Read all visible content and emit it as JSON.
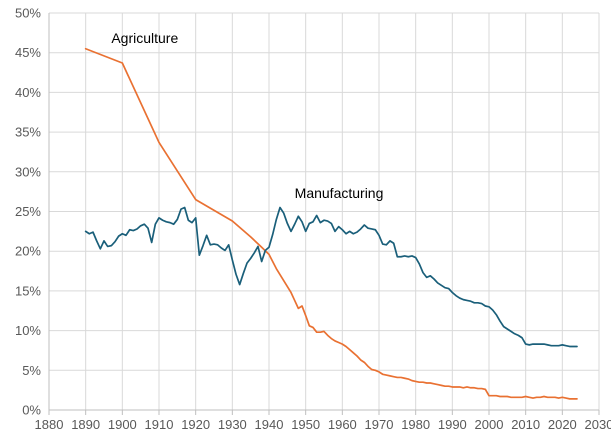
{
  "chart_data": {
    "type": "line",
    "title": "",
    "xlabel": "",
    "ylabel": "",
    "xlim": [
      1880,
      2030
    ],
    "ylim": [
      0,
      0.5
    ],
    "x_ticks": [
      1880,
      1890,
      1900,
      1910,
      1920,
      1930,
      1940,
      1950,
      1960,
      1970,
      1980,
      1990,
      2000,
      2010,
      2020,
      2030
    ],
    "x_tick_labels": [
      "1880",
      "1890",
      "1900",
      "1910",
      "1920",
      "1930",
      "1940",
      "1950",
      "1960",
      "1970",
      "1980",
      "1990",
      "2000",
      "2010",
      "2020",
      "2030"
    ],
    "y_ticks": [
      0,
      0.05,
      0.1,
      0.15,
      0.2,
      0.25,
      0.3,
      0.35,
      0.4,
      0.45,
      0.5
    ],
    "y_tick_labels": [
      "0%",
      "5%",
      "10%",
      "15%",
      "20%",
      "25%",
      "30%",
      "35%",
      "40%",
      "45%",
      "50%"
    ],
    "grid": {
      "vertical": true,
      "horizontal": true
    },
    "legend": "none",
    "series": [
      {
        "name": "Agriculture",
        "color": "#e97132",
        "label_at": [
          1897,
          0.462
        ],
        "x": [
          1890,
          1900,
          1910,
          1920,
          1930,
          1935,
          1938,
          1940,
          1942,
          1944,
          1946,
          1947,
          1948,
          1949,
          1950,
          1951,
          1952,
          1953,
          1954,
          1955,
          1956,
          1957,
          1958,
          1959,
          1960,
          1961,
          1962,
          1963,
          1964,
          1965,
          1966,
          1967,
          1968,
          1969,
          1970,
          1971,
          1972,
          1973,
          1974,
          1975,
          1976,
          1977,
          1978,
          1979,
          1980,
          1981,
          1982,
          1983,
          1984,
          1985,
          1986,
          1987,
          1988,
          1989,
          1990,
          1991,
          1992,
          1993,
          1994,
          1995,
          1996,
          1997,
          1998,
          1999,
          2000,
          2001,
          2002,
          2003,
          2004,
          2005,
          2006,
          2007,
          2008,
          2009,
          2010,
          2011,
          2012,
          2013,
          2014,
          2015,
          2016,
          2017,
          2018,
          2019,
          2020,
          2021,
          2022,
          2023,
          2024
        ],
        "y": [
          0.455,
          0.437,
          0.337,
          0.265,
          0.238,
          0.218,
          0.205,
          0.196,
          0.178,
          0.163,
          0.148,
          0.138,
          0.128,
          0.131,
          0.119,
          0.106,
          0.104,
          0.098,
          0.098,
          0.099,
          0.094,
          0.09,
          0.087,
          0.085,
          0.083,
          0.08,
          0.076,
          0.072,
          0.068,
          0.063,
          0.06,
          0.055,
          0.051,
          0.05,
          0.048,
          0.045,
          0.044,
          0.043,
          0.042,
          0.041,
          0.041,
          0.04,
          0.039,
          0.037,
          0.036,
          0.035,
          0.035,
          0.034,
          0.034,
          0.033,
          0.032,
          0.031,
          0.03,
          0.03,
          0.029,
          0.029,
          0.029,
          0.028,
          0.029,
          0.028,
          0.028,
          0.027,
          0.027,
          0.026,
          0.018,
          0.018,
          0.018,
          0.017,
          0.017,
          0.017,
          0.016,
          0.016,
          0.016,
          0.016,
          0.017,
          0.016,
          0.015,
          0.016,
          0.016,
          0.017,
          0.016,
          0.016,
          0.016,
          0.015,
          0.016,
          0.015,
          0.014,
          0.014,
          0.014
        ]
      },
      {
        "name": "Manufacturing",
        "color": "#1a5f7a",
        "label_at": [
          1947,
          0.267
        ],
        "x": [
          1890,
          1891,
          1892,
          1893,
          1894,
          1895,
          1896,
          1897,
          1898,
          1899,
          1900,
          1901,
          1902,
          1903,
          1904,
          1905,
          1906,
          1907,
          1908,
          1909,
          1910,
          1911,
          1912,
          1913,
          1914,
          1915,
          1916,
          1917,
          1918,
          1919,
          1920,
          1921,
          1922,
          1923,
          1924,
          1925,
          1926,
          1927,
          1928,
          1929,
          1930,
          1931,
          1932,
          1933,
          1934,
          1935,
          1936,
          1937,
          1938,
          1939,
          1940,
          1941,
          1942,
          1943,
          1944,
          1945,
          1946,
          1947,
          1948,
          1949,
          1950,
          1951,
          1952,
          1953,
          1954,
          1955,
          1956,
          1957,
          1958,
          1959,
          1960,
          1961,
          1962,
          1963,
          1964,
          1965,
          1966,
          1967,
          1968,
          1969,
          1970,
          1971,
          1972,
          1973,
          1974,
          1975,
          1976,
          1977,
          1978,
          1979,
          1980,
          1981,
          1982,
          1983,
          1984,
          1985,
          1986,
          1987,
          1988,
          1989,
          1990,
          1991,
          1992,
          1993,
          1994,
          1995,
          1996,
          1997,
          1998,
          1999,
          2000,
          2001,
          2002,
          2003,
          2004,
          2005,
          2006,
          2007,
          2008,
          2009,
          2010,
          2011,
          2012,
          2013,
          2014,
          2015,
          2016,
          2017,
          2018,
          2019,
          2020,
          2021,
          2022,
          2023,
          2024
        ],
        "y": [
          0.225,
          0.222,
          0.224,
          0.213,
          0.203,
          0.213,
          0.206,
          0.207,
          0.212,
          0.219,
          0.222,
          0.22,
          0.227,
          0.226,
          0.228,
          0.232,
          0.234,
          0.229,
          0.211,
          0.234,
          0.242,
          0.239,
          0.237,
          0.236,
          0.234,
          0.24,
          0.253,
          0.255,
          0.239,
          0.236,
          0.242,
          0.195,
          0.207,
          0.22,
          0.208,
          0.209,
          0.208,
          0.204,
          0.201,
          0.208,
          0.189,
          0.171,
          0.158,
          0.172,
          0.185,
          0.191,
          0.198,
          0.206,
          0.187,
          0.201,
          0.205,
          0.221,
          0.24,
          0.255,
          0.248,
          0.235,
          0.225,
          0.234,
          0.244,
          0.237,
          0.225,
          0.235,
          0.237,
          0.245,
          0.236,
          0.239,
          0.238,
          0.235,
          0.225,
          0.231,
          0.227,
          0.222,
          0.225,
          0.222,
          0.224,
          0.228,
          0.233,
          0.229,
          0.228,
          0.227,
          0.22,
          0.209,
          0.208,
          0.213,
          0.21,
          0.193,
          0.193,
          0.194,
          0.193,
          0.194,
          0.192,
          0.184,
          0.173,
          0.167,
          0.169,
          0.165,
          0.16,
          0.157,
          0.154,
          0.153,
          0.148,
          0.144,
          0.141,
          0.139,
          0.138,
          0.137,
          0.135,
          0.135,
          0.134,
          0.131,
          0.13,
          0.126,
          0.12,
          0.112,
          0.105,
          0.102,
          0.099,
          0.096,
          0.094,
          0.091,
          0.083,
          0.082,
          0.083,
          0.083,
          0.083,
          0.083,
          0.082,
          0.081,
          0.081,
          0.081,
          0.082,
          0.081,
          0.08,
          0.08,
          0.08
        ]
      }
    ]
  }
}
